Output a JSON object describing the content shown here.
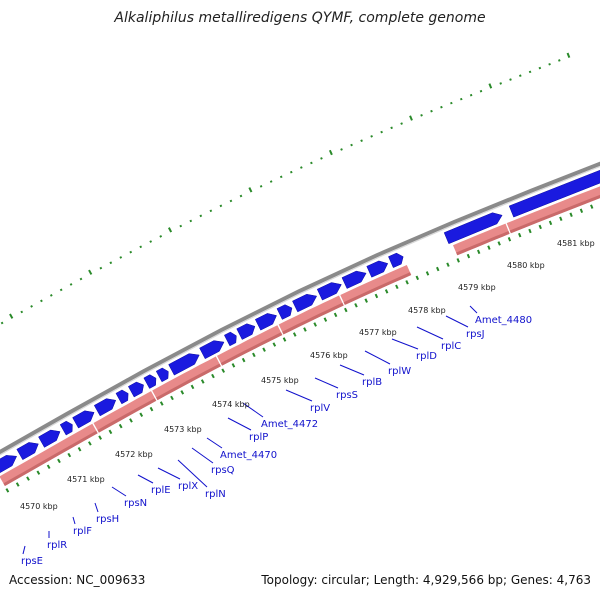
{
  "title": "Alkaliphilus metalliredigens QYMF, complete genome",
  "footer": {
    "accession": "Accession: NC_009633",
    "summary": "Topology: circular; Length: 4,929,566 bp; Genes: 4,763"
  },
  "colors": {
    "forward_cds": "#1a1adf",
    "reverse_cds": "#e88a8a",
    "backbone": "#8a8a8a",
    "tick_dots": "#2a8a2a",
    "gene_label": "#1111cc"
  },
  "kbp_labels": [
    "4570 kbp",
    "4571 kbp",
    "4572 kbp",
    "4573 kbp",
    "4574 kbp",
    "4575 kbp",
    "4576 kbp",
    "4577 kbp",
    "4578 kbp",
    "4579 kbp",
    "4580 kbp",
    "4581 kbp"
  ],
  "gene_labels": [
    "rpsE",
    "rplR",
    "rplF",
    "rpsH",
    "rpsN",
    "rplE",
    "rplX",
    "rplN",
    "rpsQ",
    "Amet_4470",
    "rplP",
    "Amet_4472",
    "rplV",
    "rpsS",
    "rplB",
    "rplW",
    "rplD",
    "rplC",
    "rpsJ",
    "Amet_4480"
  ]
}
